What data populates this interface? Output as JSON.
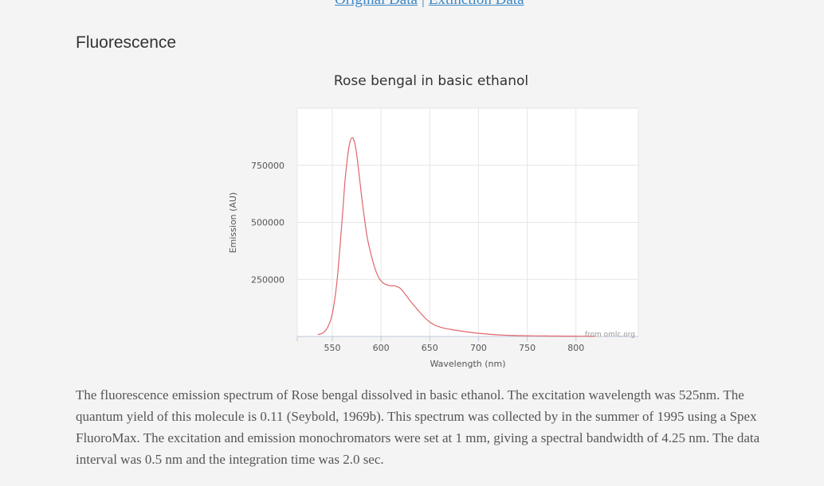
{
  "nav": {
    "original_data_link": "Original Data",
    "separator": "|",
    "extinction_data_link": "Extinction Data"
  },
  "section": {
    "title": "Fluorescence"
  },
  "description": "The fluorescence emission spectrum of Rose bengal dissolved in basic ethanol. The excitation wavelength was 525nm. The quantum yield of this molecule is 0.11 (Seybold, 1969b). This spectrum was collected by in the summer of 1995 using a Spex FluoroMax. The excitation and emission monochromators were set at 1 mm, giving a spectral bandwidth of 4.25 nm. The data interval was 0.5 nm and the integration time was 2.0 sec.",
  "chart_data": {
    "type": "line",
    "title": "Rose bengal in basic ethanol",
    "xlabel": "Wavelength (nm)",
    "ylabel": "Emission (AU)",
    "credit": "from omlc.org",
    "xlim": [
      514,
      864
    ],
    "ylim": [
      0,
      1000000
    ],
    "x_ticks": [
      550,
      600,
      650,
      700,
      750,
      800
    ],
    "y_ticks": [
      250000,
      500000,
      750000
    ],
    "y_tick_labels": [
      "250000",
      "500000",
      "750000"
    ],
    "grid": true,
    "line_color": "#e0656b",
    "series": [
      {
        "x": [
          535,
          540,
          545,
          550,
          555,
          560,
          563,
          566,
          568,
          570,
          572,
          574,
          576,
          578,
          580,
          583,
          586,
          590,
          594,
          598,
          602,
          606,
          610,
          614,
          618,
          620,
          623,
          626,
          630,
          635,
          640,
          645,
          650,
          655,
          660,
          665,
          670,
          680,
          690,
          700,
          710,
          720,
          730,
          740,
          750,
          760,
          770,
          780,
          790,
          800,
          810,
          820
        ],
        "y": [
          8000,
          15000,
          38000,
          100000,
          250000,
          510000,
          680000,
          800000,
          850000,
          870000,
          862000,
          825000,
          765000,
          690000,
          615000,
          515000,
          430000,
          355000,
          295000,
          255000,
          235000,
          226000,
          222000,
          222000,
          215000,
          210000,
          195000,
          178000,
          155000,
          130000,
          105000,
          82000,
          63000,
          50000,
          42000,
          36000,
          32000,
          25000,
          19000,
          14000,
          10000,
          7000,
          5000,
          4000,
          3000,
          2500,
          2000,
          1800,
          1500,
          1300,
          1000,
          800
        ]
      }
    ]
  }
}
